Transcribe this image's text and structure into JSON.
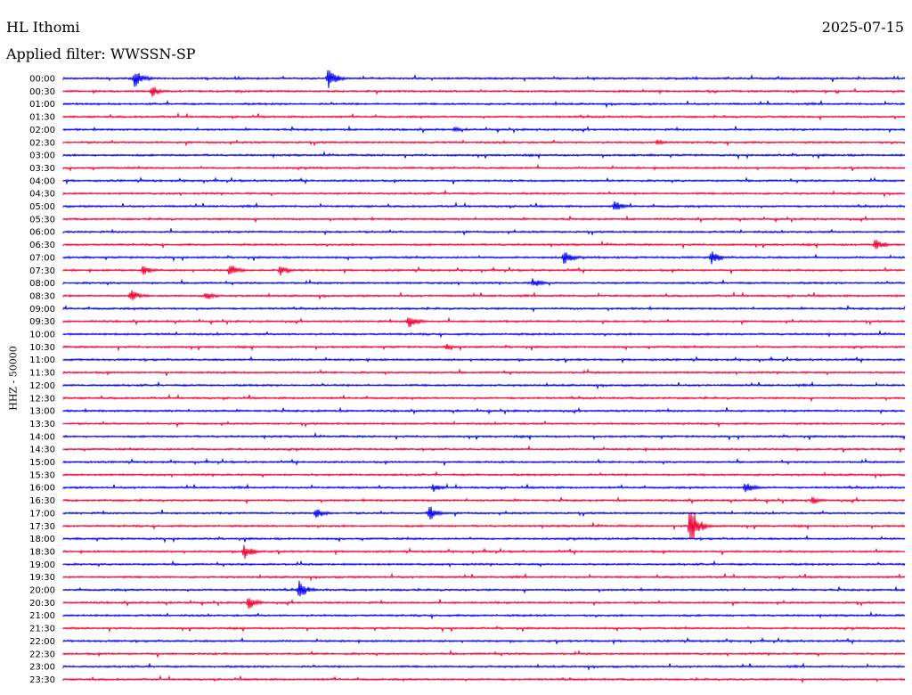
{
  "header": {
    "station": "HL Ithomi",
    "date": "2025-07-15",
    "filter": "Applied filter: WWSSN-SP"
  },
  "chart_data": {
    "type": "line",
    "title": "HL Ithomi",
    "ylabel": "HHZ - 50000",
    "row_labels": [
      "00:00",
      "00:30",
      "01:00",
      "01:30",
      "02:00",
      "02:30",
      "03:00",
      "03:30",
      "04:00",
      "04:30",
      "05:00",
      "05:30",
      "06:00",
      "06:30",
      "07:00",
      "07:30",
      "08:00",
      "08:30",
      "09:00",
      "09:30",
      "10:00",
      "10:30",
      "11:00",
      "11:30",
      "12:00",
      "12:30",
      "13:00",
      "13:30",
      "14:00",
      "14:30",
      "15:00",
      "15:30",
      "16:00",
      "16:30",
      "17:00",
      "17:30",
      "18:00",
      "18:30",
      "19:00",
      "19:30",
      "20:00",
      "20:30",
      "21:00",
      "21:30",
      "22:00",
      "22:30",
      "23:00",
      "23:30"
    ],
    "colors": {
      "even_rows": "#0000ee",
      "odd_rows": "#ee0033"
    },
    "events": [
      {
        "row": 0,
        "x": 0.085,
        "amp": 11
      },
      {
        "row": 0,
        "x": 0.315,
        "amp": 12
      },
      {
        "row": 1,
        "x": 0.105,
        "amp": 7
      },
      {
        "row": 4,
        "x": 0.465,
        "amp": 3
      },
      {
        "row": 5,
        "x": 0.705,
        "amp": 4
      },
      {
        "row": 10,
        "x": 0.655,
        "amp": 7
      },
      {
        "row": 13,
        "x": 0.965,
        "amp": 8
      },
      {
        "row": 14,
        "x": 0.595,
        "amp": 9
      },
      {
        "row": 14,
        "x": 0.77,
        "amp": 9
      },
      {
        "row": 15,
        "x": 0.095,
        "amp": 6
      },
      {
        "row": 15,
        "x": 0.198,
        "amp": 8
      },
      {
        "row": 15,
        "x": 0.258,
        "amp": 6
      },
      {
        "row": 16,
        "x": 0.558,
        "amp": 6
      },
      {
        "row": 17,
        "x": 0.08,
        "amp": 8
      },
      {
        "row": 17,
        "x": 0.17,
        "amp": 6
      },
      {
        "row": 19,
        "x": 0.41,
        "amp": 9
      },
      {
        "row": 21,
        "x": 0.455,
        "amp": 4
      },
      {
        "row": 32,
        "x": 0.44,
        "amp": 5
      },
      {
        "row": 32,
        "x": 0.81,
        "amp": 8
      },
      {
        "row": 33,
        "x": 0.89,
        "amp": 5
      },
      {
        "row": 34,
        "x": 0.3,
        "amp": 7
      },
      {
        "row": 34,
        "x": 0.435,
        "amp": 10
      },
      {
        "row": 35,
        "x": 0.745,
        "amp": 24
      },
      {
        "row": 37,
        "x": 0.215,
        "amp": 10
      },
      {
        "row": 40,
        "x": 0.28,
        "amp": 11
      },
      {
        "row": 41,
        "x": 0.22,
        "amp": 8
      }
    ]
  }
}
